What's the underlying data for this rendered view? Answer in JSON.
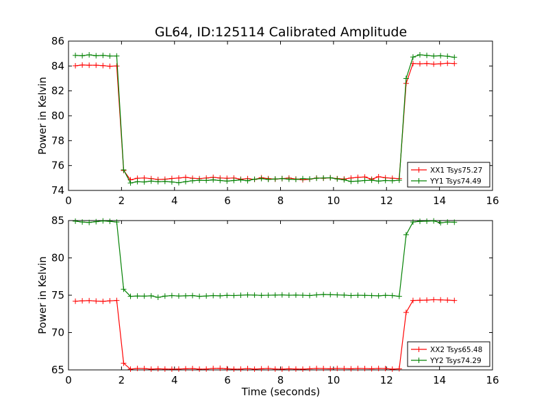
{
  "figure": {
    "title": "GL64, ID:125114 Calibrated Amplitude",
    "xlabel": "Time (seconds)"
  },
  "chart_data": [
    {
      "type": "line",
      "title": "GL64, ID:125114 Calibrated Amplitude",
      "xlabel": "",
      "ylabel": "Power in Kelvin",
      "xlim": [
        0,
        16
      ],
      "ylim": [
        74,
        86
      ],
      "xticks": [
        "0",
        "2",
        "4",
        "6",
        "8",
        "10",
        "12",
        "14",
        "16"
      ],
      "yticks": [
        "74",
        "76",
        "78",
        "80",
        "82",
        "84",
        "86"
      ],
      "grid": false,
      "legend_position": "bottom-right",
      "x": [
        0.26,
        0.52,
        0.78,
        1.04,
        1.3,
        1.56,
        1.82,
        2.08,
        2.34,
        2.6,
        2.86,
        3.12,
        3.38,
        3.64,
        3.9,
        4.16,
        4.42,
        4.68,
        4.94,
        5.2,
        5.46,
        5.72,
        5.98,
        6.24,
        6.5,
        6.76,
        7.02,
        7.28,
        7.54,
        7.8,
        8.06,
        8.32,
        8.58,
        8.84,
        9.1,
        9.36,
        9.62,
        9.88,
        10.14,
        10.4,
        10.66,
        10.92,
        11.18,
        11.44,
        11.7,
        11.96,
        12.22,
        12.48,
        12.74,
        13.0,
        13.26,
        13.52,
        13.78,
        14.04,
        14.3,
        14.56
      ],
      "series": [
        {
          "name": "XX1 Tsys75.27",
          "color": "#ff0000",
          "values": [
            84.02,
            84.08,
            84.06,
            84.06,
            84.03,
            83.98,
            84.0,
            75.6,
            74.85,
            74.98,
            75.0,
            74.95,
            74.88,
            74.9,
            74.96,
            75.0,
            75.05,
            74.98,
            74.95,
            75.0,
            75.05,
            75.0,
            74.98,
            75.0,
            74.9,
            74.95,
            74.88,
            75.02,
            74.95,
            74.9,
            74.95,
            75.0,
            74.92,
            74.85,
            74.9,
            75.0,
            74.98,
            75.02,
            74.95,
            74.92,
            75.0,
            75.05,
            75.08,
            74.9,
            75.1,
            75.02,
            74.98,
            74.95,
            82.6,
            84.2,
            84.18,
            84.2,
            84.15,
            84.18,
            84.22,
            84.2
          ]
        },
        {
          "name": "YY1 Tsys74.49",
          "color": "#008000",
          "values": [
            84.85,
            84.82,
            84.9,
            84.82,
            84.85,
            84.8,
            84.8,
            75.65,
            74.6,
            74.7,
            74.68,
            74.75,
            74.7,
            74.72,
            74.68,
            74.62,
            74.7,
            74.78,
            74.82,
            74.8,
            74.85,
            74.8,
            74.75,
            74.8,
            74.85,
            74.78,
            74.9,
            74.95,
            74.88,
            74.92,
            74.95,
            74.9,
            74.88,
            74.95,
            74.92,
            74.98,
            75.0,
            75.02,
            74.92,
            74.85,
            74.72,
            74.75,
            74.8,
            74.82,
            74.75,
            74.8,
            74.78,
            74.82,
            83.0,
            84.72,
            84.9,
            84.85,
            84.8,
            84.82,
            84.78,
            84.7
          ]
        }
      ]
    },
    {
      "type": "line",
      "title": "",
      "xlabel": "Time (seconds)",
      "ylabel": "Power in Kelvin",
      "xlim": [
        0,
        16
      ],
      "ylim": [
        65,
        85
      ],
      "xticks": [
        "0",
        "2",
        "4",
        "6",
        "8",
        "10",
        "12",
        "14",
        "16"
      ],
      "yticks": [
        "65",
        "70",
        "75",
        "80",
        "85"
      ],
      "grid": false,
      "legend_position": "bottom-right",
      "x": [
        0.26,
        0.52,
        0.78,
        1.04,
        1.3,
        1.56,
        1.82,
        2.08,
        2.34,
        2.6,
        2.86,
        3.12,
        3.38,
        3.64,
        3.9,
        4.16,
        4.42,
        4.68,
        4.94,
        5.2,
        5.46,
        5.72,
        5.98,
        6.24,
        6.5,
        6.76,
        7.02,
        7.28,
        7.54,
        7.8,
        8.06,
        8.32,
        8.58,
        8.84,
        9.1,
        9.36,
        9.62,
        9.88,
        10.14,
        10.4,
        10.66,
        10.92,
        11.18,
        11.44,
        11.7,
        11.96,
        12.22,
        12.48,
        12.74,
        13.0,
        13.26,
        13.52,
        13.78,
        14.04,
        14.3,
        14.56
      ],
      "series": [
        {
          "name": "XX2 Tsys65.48",
          "color": "#ff0000",
          "values": [
            74.2,
            74.25,
            74.28,
            74.22,
            74.18,
            74.25,
            74.3,
            65.9,
            65.1,
            65.2,
            65.18,
            65.1,
            65.15,
            65.12,
            65.1,
            65.12,
            65.15,
            65.18,
            65.1,
            65.12,
            65.2,
            65.22,
            65.15,
            65.1,
            65.12,
            65.18,
            65.1,
            65.15,
            65.2,
            65.12,
            65.1,
            65.15,
            65.12,
            65.1,
            65.15,
            65.2,
            65.18,
            65.15,
            65.2,
            65.18,
            65.15,
            65.2,
            65.18,
            65.15,
            65.2,
            65.18,
            65.1,
            65.15,
            72.7,
            74.3,
            74.32,
            74.35,
            74.4,
            74.38,
            74.35,
            74.3
          ]
        },
        {
          "name": "YY2 Tsys74.29",
          "color": "#008000",
          "values": [
            84.92,
            84.8,
            84.75,
            84.85,
            84.95,
            84.9,
            84.8,
            75.8,
            74.85,
            74.9,
            74.88,
            74.92,
            74.72,
            74.88,
            74.95,
            74.9,
            74.92,
            74.95,
            74.85,
            74.9,
            74.95,
            74.92,
            74.98,
            74.95,
            75.0,
            75.05,
            75.02,
            74.98,
            75.0,
            75.02,
            75.05,
            75.0,
            75.02,
            75.0,
            74.95,
            75.05,
            75.1,
            75.08,
            75.05,
            75.02,
            74.95,
            75.0,
            74.98,
            74.95,
            74.92,
            74.98,
            74.95,
            74.85,
            83.1,
            84.8,
            84.9,
            84.92,
            84.95,
            84.7,
            84.8,
            84.78
          ]
        }
      ]
    }
  ]
}
